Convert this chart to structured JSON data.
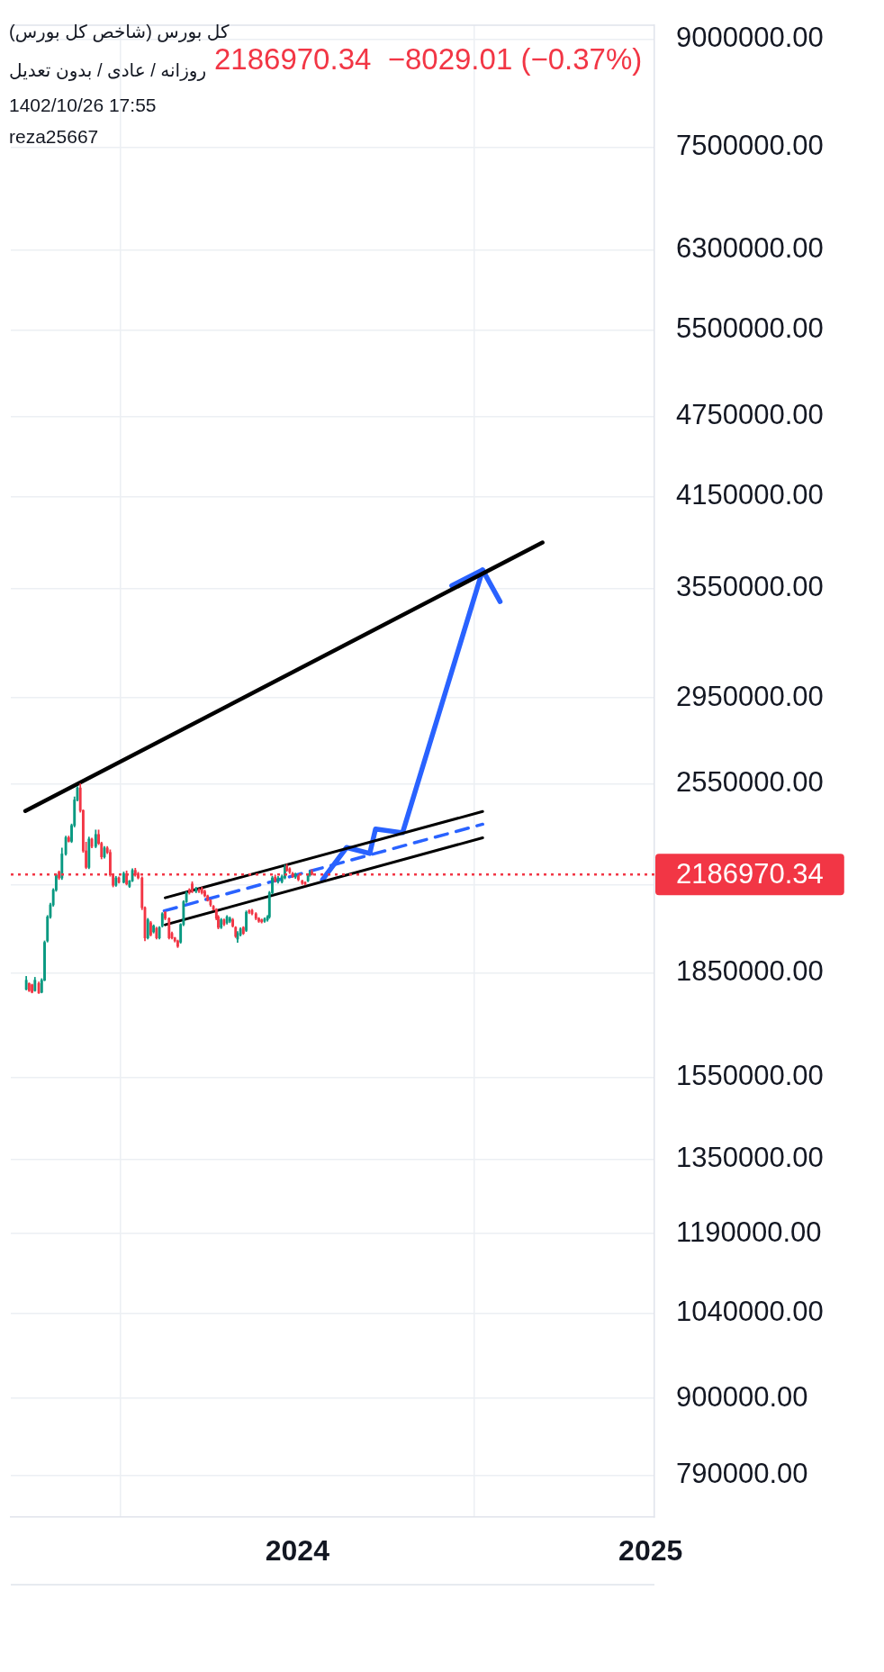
{
  "chart_data": {
    "type": "candlestick",
    "title": "کل بورس (شاخص کل بورس)",
    "subtitle": "روزانه / عادی / بدون تعدیل",
    "annotations": [
      "1402/10/26 17:55",
      "reza25667",
      "2186970.34  −8029.01 (−0.37%)"
    ],
    "series": [
      {
        "x": [
          "2023-03-26",
          "2023-03-29",
          "2023-04-01",
          "2023-04-04",
          "2023-04-08",
          "2023-04-11",
          "2023-04-14",
          "2023-04-17",
          "2023-04-20",
          "2023-04-23",
          "2023-04-26",
          "2023-04-29",
          "2023-05-02",
          "2023-05-06",
          "2023-05-09",
          "2023-05-12",
          "2023-05-15",
          "2023-05-18",
          "2023-05-21",
          "2023-05-24",
          "2023-05-27",
          "2023-05-30",
          "2023-06-02",
          "2023-06-06",
          "2023-06-09",
          "2023-06-12",
          "2023-06-15",
          "2023-06-18",
          "2023-06-21",
          "2023-06-24",
          "2023-06-27",
          "2023-06-30",
          "2023-07-05",
          "2023-07-08",
          "2023-07-11",
          "2023-07-14",
          "2023-07-17",
          "2023-07-20",
          "2023-07-24",
          "2023-07-27",
          "2023-07-30",
          "2023-08-02",
          "2023-08-05",
          "2023-08-08",
          "2023-08-11",
          "2023-08-14",
          "2023-08-17",
          "2023-08-21",
          "2023-08-24",
          "2023-08-27",
          "2023-08-30",
          "2023-09-02",
          "2023-09-05",
          "2023-09-08",
          "2023-09-11",
          "2023-09-14",
          "2023-09-18",
          "2023-09-21",
          "2023-09-24",
          "2023-09-27",
          "2023-09-30",
          "2023-10-03",
          "2023-10-06",
          "2023-10-09",
          "2023-10-11",
          "2023-10-14",
          "2023-10-17",
          "2023-10-20",
          "2023-10-23",
          "2023-10-26",
          "2023-10-29",
          "2023-10-31",
          "2023-11-03",
          "2023-11-06",
          "2023-11-09",
          "2023-11-12",
          "2023-11-15",
          "2023-11-19",
          "2023-11-22",
          "2023-11-25",
          "2023-11-28",
          "2023-12-01",
          "2023-12-03",
          "2023-12-06",
          "2023-12-09",
          "2023-12-12",
          "2023-12-16",
          "2023-12-19",
          "2023-12-21",
          "2023-12-24",
          "2023-12-27",
          "2023-12-30",
          "2024-01-02",
          "2024-01-06",
          "2024-01-09",
          "2024-01-12",
          "2024-01-14",
          "2024-01-16"
        ],
        "ohlc": [
          [
            1800000,
            1840000,
            1798000,
            1828000
          ],
          [
            1818000,
            1820000,
            1793000,
            1796000
          ],
          [
            1814000,
            1816000,
            1789000,
            1791000
          ],
          [
            1796000,
            1837000,
            1794000,
            1828000
          ],
          [
            1818000,
            1823000,
            1787000,
            1789000
          ],
          [
            1791000,
            1833000,
            1789000,
            1828000
          ],
          [
            1828000,
            1954000,
            1826000,
            1949000
          ],
          [
            1954000,
            2040000,
            1950000,
            2035000
          ],
          [
            2035000,
            2083000,
            2030000,
            2077000
          ],
          [
            2077000,
            2135000,
            2072000,
            2130000
          ],
          [
            2130000,
            2190000,
            2125000,
            2185000
          ],
          [
            2196000,
            2200000,
            2168000,
            2174000
          ],
          [
            2174000,
            2287000,
            2168000,
            2264000
          ],
          [
            2264000,
            2334000,
            2259000,
            2328000
          ],
          [
            2328000,
            2334000,
            2310000,
            2313000
          ],
          [
            2313000,
            2382000,
            2308000,
            2376000
          ],
          [
            2376000,
            2494000,
            2370000,
            2481000
          ],
          [
            2481000,
            2538000,
            2476000,
            2532000
          ],
          [
            2532000,
            2550000,
            2430000,
            2437000
          ],
          [
            2437000,
            2440000,
            2270000,
            2276000
          ],
          [
            2276000,
            2310000,
            2208000,
            2213000
          ],
          [
            2213000,
            2330000,
            2208000,
            2322000
          ],
          [
            2322000,
            2326000,
            2288000,
            2293000
          ],
          [
            2293000,
            2358000,
            2288000,
            2340000
          ],
          [
            2340000,
            2358000,
            2300000,
            2305000
          ],
          [
            2305000,
            2310000,
            2245000,
            2253000
          ],
          [
            2253000,
            2293000,
            2248000,
            2287000
          ],
          [
            2287000,
            2293000,
            2265000,
            2270000
          ],
          [
            2270000,
            2280000,
            2180000,
            2185000
          ],
          [
            2185000,
            2188000,
            2141000,
            2147000
          ],
          [
            2147000,
            2180000,
            2143000,
            2174000
          ],
          [
            2174000,
            2178000,
            2155000,
            2158000
          ],
          [
            2158000,
            2196000,
            2155000,
            2190000
          ],
          [
            2190000,
            2200000,
            2148000,
            2152000
          ],
          [
            2143000,
            2165000,
            2139000,
            2163000
          ],
          [
            2163000,
            2208000,
            2160000,
            2202000
          ],
          [
            2202000,
            2210000,
            2180000,
            2185000
          ],
          [
            2190000,
            2195000,
            2170000,
            2174000
          ],
          [
            2174000,
            2178000,
            2060000,
            2067000
          ],
          [
            2067000,
            2070000,
            1954000,
            1964000
          ],
          [
            1964000,
            2030000,
            1960000,
            2025000
          ],
          [
            2015000,
            2020000,
            1970000,
            1974000
          ],
          [
            1984000,
            2008000,
            1980000,
            2004000
          ],
          [
            1996000,
            2000000,
            1960000,
            1964000
          ],
          [
            1964000,
            2002000,
            1960000,
            1999000
          ],
          [
            2004000,
            2050000,
            2000000,
            2046000
          ],
          [
            2051000,
            2054000,
            2025000,
            2030000
          ],
          [
            2030000,
            2032000,
            1960000,
            1964000
          ],
          [
            1979000,
            1984000,
            1960000,
            1964000
          ],
          [
            1964000,
            1966000,
            1950000,
            1954000
          ],
          [
            1954000,
            1957000,
            1932000,
            1936000
          ],
          [
            1950000,
            2012000,
            1946000,
            2009000
          ],
          [
            2009000,
            2092000,
            2005000,
            2088000
          ],
          [
            2088000,
            2124000,
            2085000,
            2120000
          ],
          [
            2130000,
            2135000,
            2115000,
            2120000
          ],
          [
            2152000,
            2160000,
            2120000,
            2125000
          ],
          [
            2125000,
            2140000,
            2120000,
            2135000
          ],
          [
            2130000,
            2135000,
            2120000,
            2125000
          ],
          [
            2135000,
            2140000,
            2115000,
            2120000
          ],
          [
            2125000,
            2130000,
            2105000,
            2109000
          ],
          [
            2109000,
            2112000,
            2090000,
            2093000
          ],
          [
            2093000,
            2096000,
            2072000,
            2077000
          ],
          [
            2072000,
            2075000,
            2058000,
            2061000
          ],
          [
            2061000,
            2064000,
            2025000,
            2030000
          ],
          [
            2035000,
            2040000,
            1994000,
            1999000
          ],
          [
            1999000,
            2030000,
            1995000,
            2025000
          ],
          [
            2025000,
            2028000,
            2005000,
            2010000
          ],
          [
            2015000,
            2040000,
            2010000,
            2035000
          ],
          [
            2020000,
            2035000,
            2015000,
            2030000
          ],
          [
            2025000,
            2030000,
            2000000,
            2004000
          ],
          [
            1999000,
            2002000,
            1965000,
            1969000
          ],
          [
            1960000,
            1985000,
            1949000,
            1979000
          ],
          [
            1974000,
            1998000,
            1970000,
            1994000
          ],
          [
            1999000,
            2002000,
            1975000,
            1979000
          ],
          [
            1989000,
            2056000,
            1985000,
            2051000
          ],
          [
            2056000,
            2060000,
            2046000,
            2051000
          ],
          [
            2058000,
            2062000,
            2042000,
            2046000
          ],
          [
            2046000,
            2050000,
            2025000,
            2030000
          ],
          [
            2030000,
            2033000,
            2016000,
            2020000
          ],
          [
            2025000,
            2028000,
            2014000,
            2018000
          ],
          [
            2020000,
            2032000,
            2016000,
            2028000
          ],
          [
            2025000,
            2040000,
            2020000,
            2035000
          ],
          [
            2035000,
            2125000,
            2030000,
            2120000
          ],
          [
            2120000,
            2180000,
            2115000,
            2174000
          ],
          [
            2177000,
            2185000,
            2158000,
            2163000
          ],
          [
            2160000,
            2180000,
            2155000,
            2174000
          ],
          [
            2160000,
            2185000,
            2155000,
            2179000
          ],
          [
            2174000,
            2222000,
            2170000,
            2213000
          ],
          [
            2217000,
            2225000,
            2198000,
            2202000
          ],
          [
            2208000,
            2212000,
            2190000,
            2196000
          ],
          [
            2190000,
            2195000,
            2175000,
            2180000
          ],
          [
            2177000,
            2192000,
            2172000,
            2188000
          ],
          [
            2180000,
            2185000,
            2163000,
            2168000
          ],
          [
            2163000,
            2166000,
            2150000,
            2154000
          ],
          [
            2158000,
            2160000,
            2148000,
            2152000
          ],
          [
            2163000,
            2190000,
            2160000,
            2185000
          ],
          [
            2185000,
            2200000,
            2180000,
            2195000
          ],
          [
            2196000,
            2205000,
            2184000,
            2186970.34
          ]
        ],
        "colors": [
          "#089981",
          "#f23645",
          "#f23645",
          "#089981",
          "#f23645",
          "#089981",
          "#089981",
          "#089981",
          "#089981",
          "#089981",
          "#089981",
          "#f23645",
          "#089981",
          "#089981",
          "#f23645",
          "#089981",
          "#089981",
          "#089981",
          "#f23645",
          "#f23645",
          "#f23645",
          "#089981",
          "#f23645",
          "#089981",
          "#f23645",
          "#f23645",
          "#089981",
          "#f23645",
          "#f23645",
          "#f23645",
          "#089981",
          "#f23645",
          "#089981",
          "#f23645",
          "#089981",
          "#089981",
          "#f23645",
          "#f23645",
          "#f23645",
          "#f23645",
          "#089981",
          "#f23645",
          "#089981",
          "#f23645",
          "#089981",
          "#089981",
          "#f23645",
          "#f23645",
          "#f23645",
          "#f23645",
          "#f23645",
          "#089981",
          "#089981",
          "#089981",
          "#f23645",
          "#f23645",
          "#089981",
          "#f23645",
          "#f23645",
          "#f23645",
          "#f23645",
          "#f23645",
          "#f23645",
          "#f23645",
          "#f23645",
          "#089981",
          "#f23645",
          "#089981",
          "#089981",
          "#f23645",
          "#f23645",
          "#089981",
          "#089981",
          "#f23645",
          "#089981",
          "#f23645",
          "#f23645",
          "#f23645",
          "#f23645",
          "#f23645",
          "#089981",
          "#089981",
          "#089981",
          "#089981",
          "#f23645",
          "#089981",
          "#089981",
          "#089981",
          "#f23645",
          "#f23645",
          "#f23645",
          "#089981",
          "#f23645",
          "#f23645",
          "#f23645",
          "#089981",
          "#089981",
          "#f23645"
        ]
      },
      {
        "type": "line",
        "x": [
          "2023-03-25",
          "2024-09-11"
        ],
        "values": [
          2435000,
          3838000
        ],
        "color": "#000000",
        "line_style": "solid"
      },
      {
        "type": "line",
        "x": [
          "2023-08-17",
          "2024-07-11"
        ],
        "values": [
          2102000,
          2433000
        ],
        "color": "#000000",
        "line_style": "solid"
      },
      {
        "type": "line",
        "x": [
          "2023-08-17",
          "2024-07-11"
        ],
        "values": [
          2008000,
          2327000
        ],
        "color": "#000000",
        "line_style": "solid"
      },
      {
        "type": "line",
        "x": [
          "2023-08-16",
          "2024-07-11"
        ],
        "values": [
          2056000,
          2381000
        ],
        "color": "#2962ff",
        "line_style": "dashed"
      },
      {
        "type": "line",
        "x": [
          "2024-01-27",
          "2024-02-21",
          "2024-03-16",
          "2024-03-22",
          "2024-04-19",
          "2024-07-11",
          "2024-07-29"
        ],
        "values": [
          2167000,
          2289000,
          2266000,
          2362000,
          2347000,
          3663000,
          3472000
        ],
        "color": "#2962ff",
        "line_style": "solid"
      },
      {
        "type": "line",
        "x": [
          "2024-06-09",
          "2024-07-11"
        ],
        "values": [
          3567000,
          3663000
        ],
        "color": "#2962ff",
        "line_style": "solid"
      }
    ],
    "xlim": [
      "2023-03-10",
      "2025-01-05"
    ],
    "xticks": [
      "2024",
      "2025"
    ],
    "ylim": [
      736000,
      9220000
    ],
    "yticks": [
      {
        "value": 790000,
        "label": "790000.00"
      },
      {
        "value": 900000,
        "label": "900000.00"
      },
      {
        "value": 1040000,
        "label": "1040000.00"
      },
      {
        "value": 1190000,
        "label": "1190000.00"
      },
      {
        "value": 1350000,
        "label": "1350000.00"
      },
      {
        "value": 1550000,
        "label": "1550000.00"
      },
      {
        "value": 1850000,
        "label": "1850000.00"
      },
      {
        "value": 2150000,
        "label": null
      },
      {
        "value": 2550000,
        "label": "2550000.00"
      },
      {
        "value": 2950000,
        "label": "2950000.00"
      },
      {
        "value": 3550000,
        "label": "3550000.00"
      },
      {
        "value": 4150000,
        "label": "4150000.00"
      },
      {
        "value": 4750000,
        "label": "4750000.00"
      },
      {
        "value": 5500000,
        "label": "5500000.00"
      },
      {
        "value": 6300000,
        "label": "6300000.00"
      },
      {
        "value": 7500000,
        "label": "7500000.00"
      },
      {
        "value": 9000000,
        "label": "9000000.00"
      }
    ],
    "log": "y",
    "grid": true,
    "ref_lines": [
      {
        "axis": "y",
        "value": 2186970.34,
        "label": "2186970.34",
        "color": "#f23645",
        "line_style": "dotted"
      }
    ]
  }
}
